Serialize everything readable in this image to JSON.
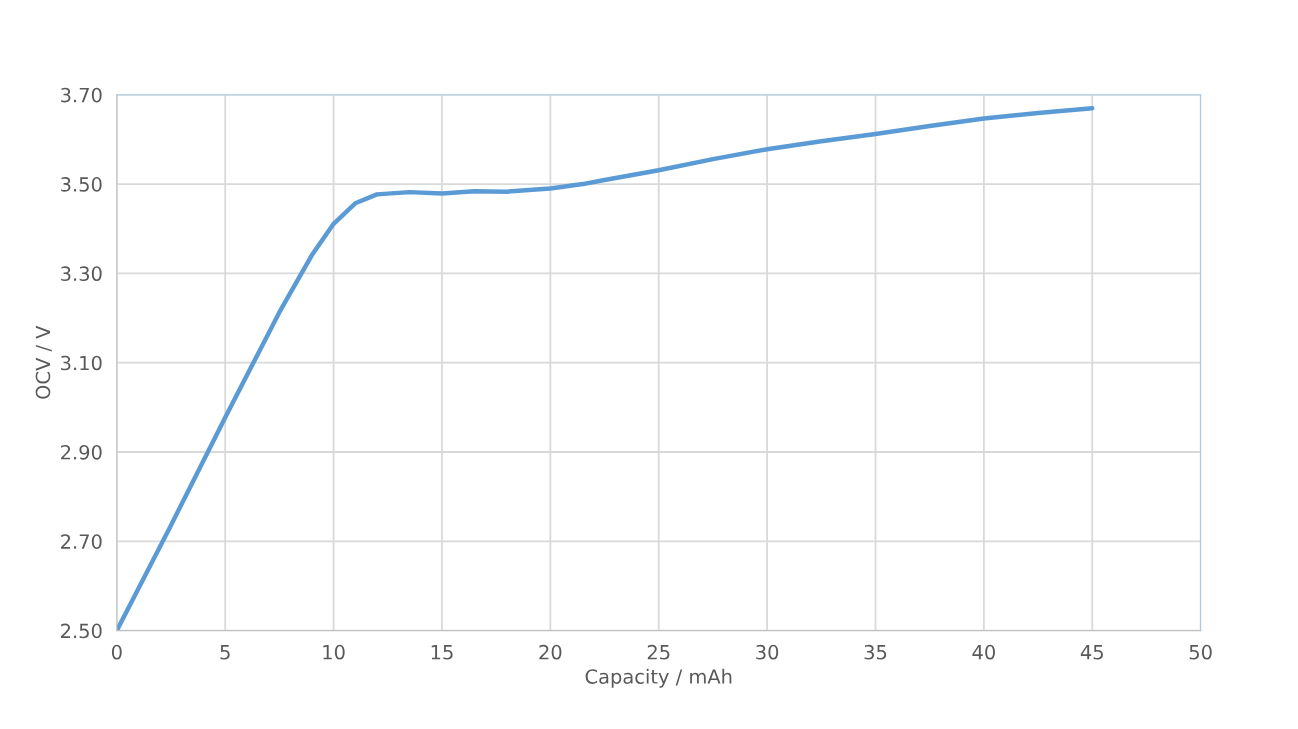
{
  "chart_data": {
    "type": "line",
    "xlabel": "Capacity / mAh",
    "ylabel": "OCV / V",
    "x": [
      0,
      2.5,
      5,
      7.5,
      9,
      10,
      11,
      12,
      13.5,
      15,
      16.5,
      18,
      20,
      21.5,
      22.5,
      25,
      27.5,
      30,
      32.5,
      35,
      37.5,
      40,
      42.5,
      45
    ],
    "series": [
      {
        "color": "#5b9bd5",
        "values": [
          2.5,
          2.736,
          2.977,
          3.213,
          3.341,
          3.411,
          3.457,
          3.477,
          3.482,
          3.479,
          3.484,
          3.483,
          3.49,
          3.5,
          3.509,
          3.531,
          3.556,
          3.578,
          3.596,
          3.612,
          3.63,
          3.647,
          3.659,
          3.67
        ]
      }
    ],
    "xlim": [
      0,
      50
    ],
    "xticks": [
      0,
      5,
      10,
      15,
      20,
      25,
      30,
      35,
      40,
      45,
      50
    ],
    "ylim": [
      2.5,
      3.7
    ],
    "yticks": [
      {
        "value": 2.5,
        "label": "2.50"
      },
      {
        "value": 2.7,
        "label": "2.70"
      },
      {
        "value": 2.9,
        "label": "2.90"
      },
      {
        "value": 3.1,
        "label": "3.10"
      },
      {
        "value": 3.3,
        "label": "3.30"
      },
      {
        "value": 3.5,
        "label": "3.50"
      },
      {
        "value": 3.7,
        "label": "3.70"
      }
    ],
    "grid": true,
    "marker": "none",
    "line_style": "solid"
  }
}
